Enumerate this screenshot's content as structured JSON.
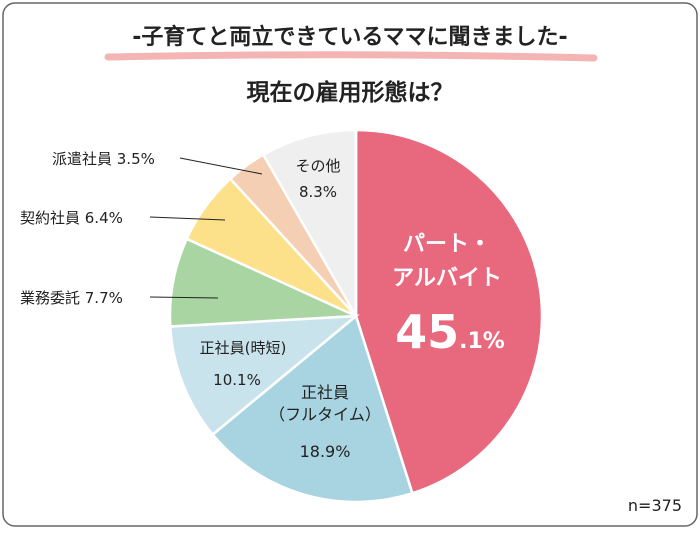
{
  "headline": "-子育てと両立できているママに聞きました-",
  "chart_data": {
    "type": "pie",
    "title": "現在の雇用形態は？",
    "sample_note": "n=375",
    "slices": [
      {
        "label": "パート・アルバイト",
        "value": 45.1,
        "color": "#e8697d"
      },
      {
        "label": "正社員（フルタイム）",
        "value": 18.9,
        "color": "#a8d4e2"
      },
      {
        "label": "正社員（時短）",
        "value": 10.1,
        "color": "#c9e3ec"
      },
      {
        "label": "業務委託",
        "value": 7.7,
        "color": "#a8d5a2"
      },
      {
        "label": "契約社員",
        "value": 6.4,
        "color": "#fde08a"
      },
      {
        "label": "派遣社員",
        "value": 3.5,
        "color": "#f4cfb4"
      },
      {
        "label": "その他",
        "value": 8.3,
        "color": "#efefef"
      }
    ]
  },
  "labels": {
    "part_line1": "パート・",
    "part_line2": "アルバイト",
    "part_value_big": "45",
    "part_value_small": ".1%",
    "fulltime_line1": "正社員",
    "fulltime_line2": "（フルタイム）",
    "fulltime_value": "18.9%",
    "shorttime_line1": "正社員(時短)",
    "shorttime_value": "10.1%",
    "outsource": "業務委託 7.7%",
    "contract": "契約社員 6.4%",
    "dispatch": "派遣社員 3.5%",
    "other_line1": "その他",
    "other_value": "8.3%"
  }
}
